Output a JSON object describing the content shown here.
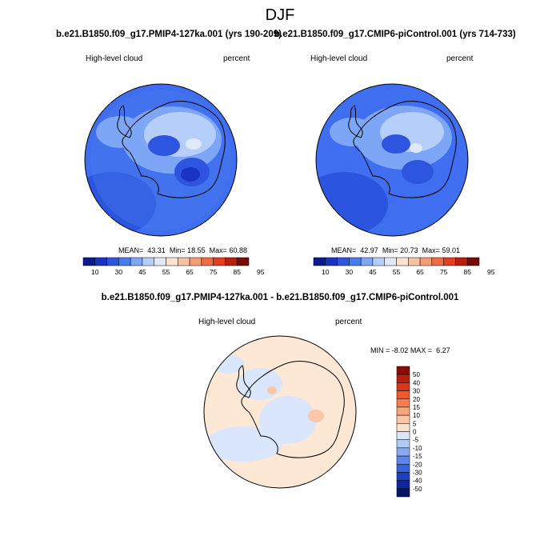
{
  "figure": {
    "season": "DJF"
  },
  "panels": [
    {
      "title": "b.e21.B1850.f09_g17.PMIP4-127ka.001 (yrs 190-209)",
      "variable": "High-level cloud",
      "units": "percent",
      "stats": {
        "mean_label": "MEAN=",
        "mean": "43.31",
        "min_label": "Min=",
        "min": "18.55",
        "max_label": "Max=",
        "max": "60.88"
      }
    },
    {
      "title": "b.e21.B1850.f09_g17.CMIP6-piControl.001 (yrs 714-733)",
      "variable": "High-level cloud",
      "units": "percent",
      "stats": {
        "mean_label": "MEAN=",
        "mean": "42.97",
        "min_label": "Min=",
        "min": "20.73",
        "max_label": "Max=",
        "max": "59.01"
      }
    },
    {
      "title": "b.e21.B1850.f09_g17.PMIP4-127ka.001 - b.e21.B1850.f09_g17.CMIP6-piControl.001",
      "variable": "High-level cloud",
      "units": "percent",
      "stats": {
        "min_label": "MIN =",
        "min": "-8.02",
        "max_label": "MAX =",
        "max": "6.27"
      }
    }
  ],
  "colorbars": {
    "absolute": {
      "labels": [
        "10",
        "30",
        "45",
        "55",
        "65",
        "75",
        "85",
        "95"
      ],
      "colors": [
        "#0a1a8f",
        "#1a33c2",
        "#2e55e0",
        "#4a7bef",
        "#7ea6f7",
        "#b5cffa",
        "#dfe9fb",
        "#fce3cf",
        "#f9c2a4",
        "#f59c75",
        "#ef6b42",
        "#e0401e",
        "#b8200c",
        "#7a0a05"
      ]
    },
    "difference": {
      "labels": [
        "50",
        "40",
        "30",
        "20",
        "15",
        "10",
        "5",
        "0",
        "-5",
        "-10",
        "-15",
        "-20",
        "-30",
        "-40",
        "-50"
      ],
      "colors": [
        "#8a0c06",
        "#b5200e",
        "#d8381a",
        "#ec5a2f",
        "#f57e50",
        "#f8a47d",
        "#fbc7a8",
        "#fde3cf",
        "#d9e6fb",
        "#b1cbf7",
        "#86a9f0",
        "#5b85e6",
        "#3964d9",
        "#1d40c0",
        "#0f2599",
        "#06136b"
      ]
    }
  }
}
